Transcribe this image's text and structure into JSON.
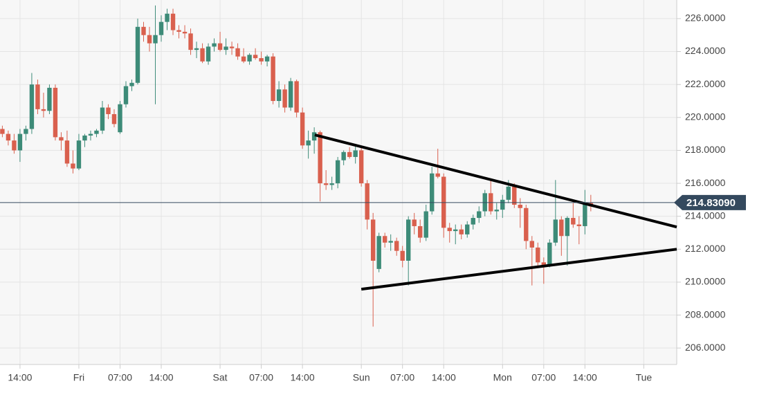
{
  "chart_data": {
    "type": "candlestick",
    "up_color": "#3d8b78",
    "down_color": "#d9604e",
    "grid": true,
    "xlim": [
      -13.4,
      101.6
    ],
    "ylim": [
      205.0,
      227.13
    ],
    "xticks": [
      {
        "value": -10,
        "label": "14:00"
      },
      {
        "value": 0,
        "label": "Fri"
      },
      {
        "value": 7,
        "label": "07:00"
      },
      {
        "value": 14,
        "label": "14:00"
      },
      {
        "value": 24,
        "label": "Sat"
      },
      {
        "value": 31,
        "label": "07:00"
      },
      {
        "value": 38,
        "label": "14:00"
      },
      {
        "value": 48,
        "label": "Sun"
      },
      {
        "value": 55,
        "label": "07:00"
      },
      {
        "value": 62,
        "label": "14:00"
      },
      {
        "value": 72,
        "label": "Mon"
      },
      {
        "value": 79,
        "label": "07:00"
      },
      {
        "value": 86,
        "label": "14:00"
      },
      {
        "value": 96,
        "label": "Tue"
      }
    ],
    "yticks": [
      {
        "value": 206,
        "label": "206.0000"
      },
      {
        "value": 208,
        "label": "208.0000"
      },
      {
        "value": 210,
        "label": "210.0000"
      },
      {
        "value": 212,
        "label": "212.0000"
      },
      {
        "value": 214,
        "label": "214.0000"
      },
      {
        "value": 216,
        "label": "216.0000"
      },
      {
        "value": 218,
        "label": "218.0000"
      },
      {
        "value": 220,
        "label": "220.0000"
      },
      {
        "value": 222,
        "label": "222.0000"
      },
      {
        "value": 224,
        "label": "224.0000"
      },
      {
        "value": 226,
        "label": "226.0000"
      }
    ],
    "last_price": {
      "value": 214.8309,
      "label": "214.83090",
      "color": "#34495e"
    },
    "trendlines": [
      {
        "x": [
          40.1,
          101.6
        ],
        "y": [
          218.94,
          213.35
        ],
        "color": "#000000"
      },
      {
        "x": [
          48,
          101.6
        ],
        "y": [
          209.57,
          212.0
        ],
        "color": "#000000"
      }
    ],
    "x": [
      -13,
      -12,
      -11,
      -10,
      -9,
      -8,
      -7,
      -6,
      -5,
      -4,
      -3,
      -2,
      -1,
      0,
      1,
      2,
      3,
      4,
      5,
      6,
      7,
      8,
      9,
      10,
      11,
      12,
      13,
      14,
      15,
      16,
      17,
      18,
      19,
      20,
      21,
      22,
      23,
      24,
      25,
      26,
      27,
      28,
      29,
      30,
      31,
      32,
      33,
      34,
      35,
      36,
      37,
      38,
      39,
      40,
      41,
      42,
      43,
      44,
      45,
      46,
      47,
      48,
      49,
      50,
      51,
      52,
      53,
      54,
      55,
      56,
      57,
      58,
      59,
      60,
      61,
      62,
      63,
      64,
      65,
      66,
      67,
      68,
      69,
      70,
      71,
      72,
      73,
      74,
      75,
      76,
      77,
      78,
      79,
      80,
      81,
      82,
      83,
      84,
      85,
      86,
      87
    ],
    "open": [
      219.3,
      219.0,
      218.6,
      218.0,
      219.0,
      219.3,
      222.0,
      220.5,
      220.4,
      221.8,
      218.8,
      218.6,
      217.2,
      216.9,
      218.6,
      218.9,
      219.0,
      219.2,
      220.6,
      220.2,
      219.1,
      220.8,
      221.9,
      222.1,
      225.5,
      225.0,
      224.5,
      225.0,
      225.8,
      226.3,
      225.3,
      225.2,
      225.1,
      224.1,
      224.2,
      223.4,
      224.3,
      224.5,
      224.1,
      224.3,
      224.2,
      223.7,
      223.4,
      223.8,
      223.6,
      223.4,
      223.7,
      221.0,
      221.7,
      220.6,
      222.2,
      220.3,
      218.3,
      218.6,
      219.1,
      216.0,
      215.9,
      216.0,
      217.4,
      217.9,
      217.6,
      218.0,
      216.0,
      213.8,
      210.8,
      212.8,
      212.4,
      212.5,
      211.9,
      211.3,
      213.8,
      213.4,
      212.7,
      214.3,
      216.6,
      216.4,
      213.3,
      213.1,
      213.2,
      212.9,
      213.5,
      213.9,
      214.3,
      215.4,
      214.3,
      214.4,
      215.0,
      215.8,
      214.7,
      214.5,
      212.5,
      212.1,
      211.2,
      211.0,
      212.4,
      213.8,
      212.8,
      213.9,
      213.5,
      213.4,
      214.8
    ],
    "high": [
      219.5,
      219.2,
      219.0,
      219.3,
      219.5,
      222.7,
      222.3,
      221.5,
      222.0,
      222.0,
      219.1,
      219.2,
      218.0,
      219.0,
      219.0,
      219.2,
      219.3,
      221.0,
      220.8,
      220.5,
      221.0,
      222.2,
      222.3,
      226.0,
      225.8,
      225.5,
      226.8,
      226.2,
      226.6,
      226.6,
      225.6,
      225.6,
      225.4,
      224.6,
      224.5,
      224.5,
      224.8,
      225.2,
      224.8,
      224.6,
      224.5,
      224.2,
      223.9,
      224.2,
      224.0,
      223.8,
      223.9,
      222.2,
      222.0,
      222.4,
      222.3,
      220.6,
      219.2,
      219.4,
      219.2,
      216.8,
      216.4,
      217.6,
      218.0,
      218.2,
      218.4,
      218.2,
      216.2,
      214.2,
      213.0,
      213.0,
      212.9,
      212.7,
      212.2,
      214.0,
      214.2,
      213.8,
      214.7,
      217.0,
      218.1,
      216.6,
      213.6,
      213.5,
      213.5,
      213.7,
      214.1,
      214.6,
      215.6,
      216.2,
      214.8,
      215.3,
      216.2,
      216.0,
      215.1,
      214.7,
      212.8,
      212.4,
      211.5,
      212.6,
      216.2,
      214.0,
      214.0,
      214.8,
      214.0,
      215.6,
      215.3
    ],
    "low": [
      218.8,
      218.3,
      217.8,
      217.3,
      218.6,
      219.0,
      220.2,
      220.0,
      220.2,
      218.6,
      218.0,
      217.0,
      216.6,
      216.8,
      218.2,
      218.6,
      218.8,
      219.0,
      219.9,
      219.4,
      219.0,
      220.6,
      221.6,
      222.0,
      224.6,
      224.0,
      220.8,
      224.6,
      225.3,
      225.0,
      224.8,
      224.8,
      223.8,
      223.6,
      223.3,
      223.2,
      224.0,
      224.0,
      223.8,
      223.8,
      223.5,
      223.3,
      223.2,
      223.5,
      223.2,
      223.1,
      220.8,
      220.6,
      220.3,
      220.4,
      220.0,
      218.1,
      217.5,
      217.8,
      214.9,
      215.6,
      215.6,
      215.7,
      217.1,
      217.5,
      217.2,
      215.8,
      213.2,
      207.3,
      210.6,
      212.1,
      211.9,
      211.6,
      210.9,
      209.8,
      212.9,
      212.4,
      212.5,
      214.1,
      216.3,
      212.7,
      212.4,
      212.3,
      212.6,
      212.7,
      213.2,
      213.6,
      214.0,
      214.1,
      213.8,
      213.9,
      214.8,
      214.5,
      213.3,
      212.0,
      209.8,
      210.9,
      209.9,
      210.9,
      212.2,
      211.6,
      211.0,
      213.3,
      212.3,
      212.9,
      214.3
    ],
    "close": [
      219.0,
      218.6,
      218.0,
      219.0,
      219.3,
      222.0,
      220.5,
      220.4,
      221.8,
      218.8,
      218.6,
      217.2,
      216.9,
      218.6,
      218.9,
      219.0,
      219.2,
      220.6,
      220.2,
      219.6,
      220.8,
      221.9,
      222.1,
      225.5,
      225.0,
      224.5,
      225.0,
      225.8,
      226.3,
      225.3,
      225.2,
      225.1,
      224.1,
      224.2,
      223.4,
      224.3,
      224.5,
      224.1,
      224.3,
      224.2,
      223.7,
      223.4,
      223.8,
      223.6,
      223.4,
      223.7,
      221.0,
      221.7,
      220.6,
      222.2,
      220.3,
      218.3,
      218.6,
      219.1,
      216.0,
      215.9,
      216.0,
      217.4,
      217.9,
      217.6,
      218.0,
      216.0,
      213.8,
      211.3,
      212.8,
      212.4,
      212.5,
      211.9,
      211.3,
      213.8,
      213.4,
      212.7,
      214.3,
      216.6,
      216.4,
      213.3,
      213.1,
      213.2,
      212.9,
      213.5,
      213.9,
      214.3,
      215.4,
      214.3,
      214.4,
      215.0,
      215.8,
      214.7,
      214.5,
      212.5,
      212.1,
      211.2,
      211.0,
      212.4,
      213.8,
      212.8,
      213.9,
      213.5,
      213.4,
      214.8,
      214.6
    ]
  }
}
